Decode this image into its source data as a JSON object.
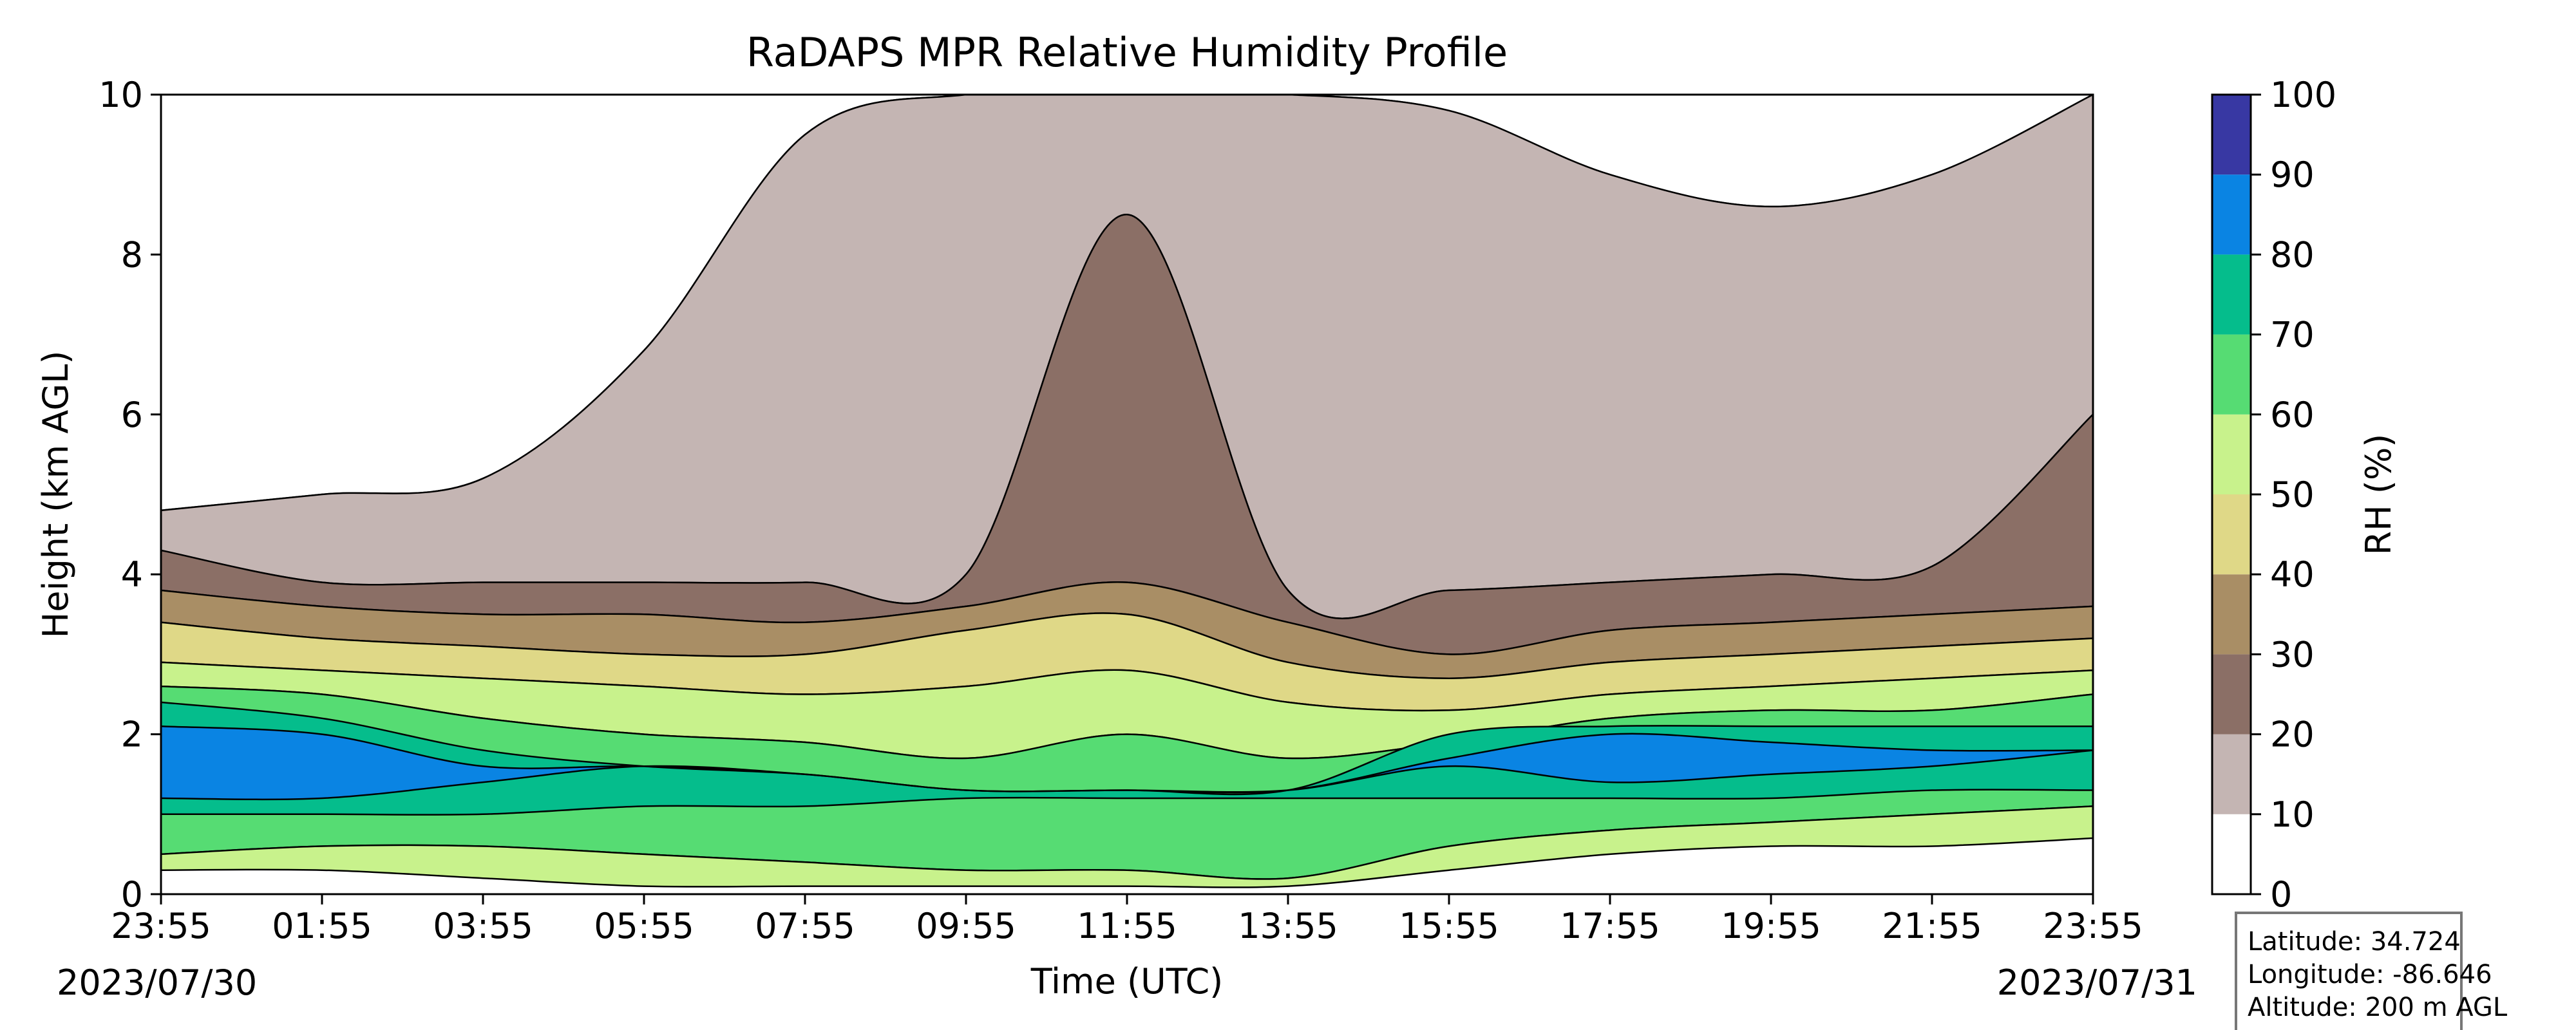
{
  "chart_data": {
    "type": "contour",
    "title": "RaDAPS MPR Relative Humidity Profile",
    "xlabel": "Time (UTC)",
    "ylabel": "Height (km AGL)",
    "x_ticks": [
      "23:55",
      "01:55",
      "03:55",
      "05:55",
      "07:55",
      "09:55",
      "11:55",
      "13:55",
      "15:55",
      "17:55",
      "19:55",
      "21:55",
      "23:55"
    ],
    "y_ticks": [
      0,
      2,
      4,
      6,
      8,
      10
    ],
    "ylim": [
      0,
      10
    ],
    "start_date": "2023/07/30",
    "end_date": "2023/07/31",
    "colorbar": {
      "label": "RH (%)",
      "levels": [
        0,
        10,
        20,
        30,
        40,
        50,
        60,
        70,
        80,
        90,
        100
      ],
      "colors": [
        "#ffffff",
        "#c4b5b3",
        "#8b6f66",
        "#a98e65",
        "#dfd887",
        "#c8f28c",
        "#56dc73",
        "#05bd8c",
        "#0a84e3",
        "#3838a3"
      ]
    },
    "bands": [
      {
        "range": "0-10",
        "color": "#ffffff",
        "from_km": [
          4.8,
          5.0,
          5.2,
          6.8,
          9.5,
          10.0,
          10.0,
          10.0,
          9.8,
          9.0,
          8.6,
          9.0,
          10.0
        ],
        "to_km": [
          10,
          10,
          10,
          10,
          10,
          10,
          10,
          10,
          10,
          10,
          10,
          10,
          10
        ]
      },
      {
        "range": "10-20",
        "color": "#c4b5b3",
        "from_km": [
          4.3,
          3.9,
          3.9,
          3.9,
          3.9,
          4.0,
          8.5,
          3.8,
          3.8,
          3.9,
          4.0,
          4.1,
          6.0
        ],
        "to_km": [
          4.8,
          5.0,
          5.2,
          6.8,
          9.5,
          10.0,
          10.0,
          10.0,
          9.8,
          9.0,
          8.6,
          9.0,
          10.0
        ]
      },
      {
        "range": "20-30",
        "color": "#8b6f66",
        "from_km": [
          3.8,
          3.6,
          3.5,
          3.5,
          3.4,
          3.6,
          3.9,
          3.4,
          3.0,
          3.3,
          3.4,
          3.5,
          3.6
        ],
        "to_km": [
          4.3,
          3.9,
          3.9,
          3.9,
          3.9,
          4.0,
          8.5,
          3.8,
          3.8,
          3.9,
          4.0,
          4.1,
          6.0
        ]
      },
      {
        "range": "30-40",
        "color": "#a98e65",
        "from_km": [
          3.4,
          3.2,
          3.1,
          3.0,
          3.0,
          3.3,
          3.5,
          2.9,
          2.7,
          2.9,
          3.0,
          3.1,
          3.2
        ],
        "to_km": [
          3.8,
          3.6,
          3.5,
          3.5,
          3.4,
          3.6,
          3.9,
          3.4,
          3.0,
          3.3,
          3.4,
          3.5,
          3.6
        ]
      },
      {
        "range": "40-50",
        "color": "#dfd887",
        "from_km": [
          2.9,
          2.8,
          2.7,
          2.6,
          2.5,
          2.6,
          2.8,
          2.4,
          2.3,
          2.5,
          2.6,
          2.7,
          2.8
        ],
        "to_km": [
          3.4,
          3.2,
          3.1,
          3.0,
          3.0,
          3.3,
          3.5,
          2.9,
          2.7,
          2.9,
          3.0,
          3.1,
          3.2
        ]
      },
      {
        "range": "50-60",
        "color": "#c8f28c",
        "from_km": [
          2.6,
          2.5,
          2.2,
          2.0,
          1.9,
          1.7,
          2.0,
          1.7,
          1.9,
          2.2,
          2.3,
          2.3,
          2.5
        ],
        "to_km": [
          2.9,
          2.8,
          2.7,
          2.6,
          2.5,
          2.6,
          2.8,
          2.4,
          2.3,
          2.5,
          2.6,
          2.7,
          2.8
        ]
      },
      {
        "range": "60-70",
        "color": "#56dc73",
        "from_km": [
          0.5,
          0.6,
          0.6,
          0.5,
          0.4,
          0.3,
          0.3,
          0.2,
          0.6,
          0.8,
          0.9,
          1.0,
          1.1
        ],
        "to_km": [
          2.6,
          2.5,
          2.2,
          2.0,
          1.9,
          1.7,
          2.0,
          1.7,
          1.9,
          2.2,
          2.3,
          2.3,
          2.5
        ]
      },
      {
        "range": "50-60",
        "color": "#c8f28c",
        "from_km": [
          0.3,
          0.3,
          0.2,
          0.1,
          0.1,
          0.1,
          0.1,
          0.1,
          0.3,
          0.5,
          0.6,
          0.6,
          0.7
        ],
        "to_km": [
          0.5,
          0.6,
          0.6,
          0.5,
          0.4,
          0.3,
          0.3,
          0.2,
          0.6,
          0.8,
          0.9,
          1.0,
          1.1
        ]
      },
      {
        "range": "70-80",
        "color": "#05bd8c",
        "from_km": [
          1.0,
          1.0,
          1.0,
          1.1,
          1.1,
          1.2,
          1.2,
          1.2,
          1.2,
          1.2,
          1.2,
          1.3,
          1.3
        ],
        "to_km": [
          2.4,
          2.2,
          1.8,
          1.6,
          1.5,
          1.3,
          1.3,
          1.3,
          2.0,
          2.1,
          2.1,
          2.1,
          2.1
        ]
      },
      {
        "range": "80-90",
        "color": "#0a84e3",
        "from_km": [
          1.2,
          1.2,
          1.4,
          1.6,
          1.5,
          1.3,
          1.3,
          1.3,
          1.6,
          1.4,
          1.5,
          1.6,
          1.8
        ],
        "to_km": [
          2.1,
          2.0,
          1.6,
          1.6,
          1.5,
          1.3,
          1.3,
          1.3,
          1.7,
          2.0,
          1.9,
          1.8,
          1.8
        ]
      }
    ]
  },
  "info_box": {
    "latitude": "Latitude: 34.724",
    "longitude": "Longitude: -86.646",
    "altitude": "Altitude: 200 m AGL"
  }
}
